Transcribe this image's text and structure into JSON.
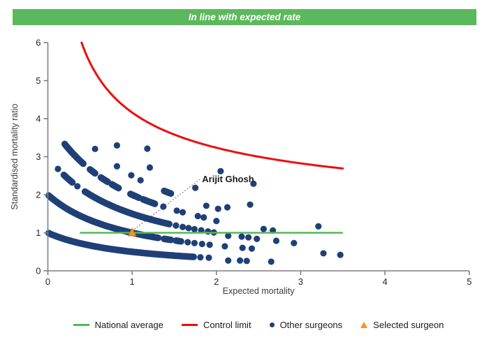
{
  "header": {
    "title": "In line with expected rate",
    "bg_color": "#5cb85c"
  },
  "colors": {
    "national_average_green": "#55b954",
    "control_limit_red": "#ee0c0c",
    "surgeon_dot_navy": "#1f4077",
    "selected_orange_fill": "#f7941e",
    "selected_orange_stroke": "#d97b10",
    "axis_gray": "#7f7f7f",
    "tick_text": "#262626",
    "axis_title_text": "#3d3d3d",
    "annotation_text": "#1a1a1a"
  },
  "chart_data": {
    "type": "scatter",
    "title": "",
    "xlabel": "Expected mortality",
    "ylabel": "Standardised mortality ratio",
    "xlim": [
      0,
      5
    ],
    "ylim": [
      0,
      6
    ],
    "xticks": [
      0,
      1,
      2,
      3,
      4,
      5
    ],
    "yticks": [
      0,
      1,
      2,
      3,
      4,
      5,
      6
    ],
    "grid": false,
    "legend_position": "bottom",
    "national_average": {
      "y": 1.0,
      "x_from": 0.38,
      "x_to": 3.5
    },
    "control_limit": {
      "formula": "SMR = 1 + c/sqrt(E)",
      "c": 3.162,
      "x_from": 0.4,
      "x_to": 3.5
    },
    "surgeon_bands_note": "dense streaks of overlapping surgeon points along SMR = k/(1+E)",
    "surgeon_bands": [
      {
        "k": 1,
        "dense_segments": [
          [
            0.01,
            1.73
          ]
        ],
        "dash_segments": [],
        "dot_xs": [
          1.81,
          1.91
        ]
      },
      {
        "k": 2,
        "dense_segments": [
          [
            0.01,
            1.32
          ]
        ],
        "dash_segments": [
          [
            1.38,
            1.46
          ],
          [
            1.52,
            1.58
          ]
        ],
        "dot_xs": [
          1.66,
          1.74,
          1.83,
          1.92,
          2.1,
          2.31,
          2.42
        ]
      },
      {
        "k": 3,
        "dense_segments": [
          [
            0.44,
            1.45
          ]
        ],
        "dash_segments": [
          [
            0.19,
            0.29
          ]
        ],
        "dot_xs": [
          0.12,
          0.35,
          1.52,
          1.6,
          1.67,
          1.74,
          1.82,
          1.9,
          1.97
        ]
      },
      {
        "k": 4,
        "dense_segments": [],
        "dash_segments": [
          [
            0.2,
            0.42
          ],
          [
            0.5,
            0.57
          ],
          [
            0.63,
            0.71
          ],
          [
            0.76,
            0.85
          ],
          [
            0.98,
            1.08
          ],
          [
            1.13,
            1.28
          ]
        ],
        "dot_xs": [
          1.37,
          1.53,
          1.6,
          1.78,
          1.85
        ]
      },
      {
        "k": 5,
        "dense_segments": [],
        "dash_segments": [
          [
            1.38,
            1.46
          ]
        ],
        "dot_xs": [
          0.56,
          0.82,
          0.99,
          1.1
        ]
      },
      {
        "k": 6,
        "dense_segments": [],
        "dash_segments": [],
        "dot_xs": [
          0.82,
          1.21,
          1.75
        ]
      },
      {
        "k": 7,
        "dense_segments": [],
        "dash_segments": [],
        "dot_xs": [
          1.18
        ]
      }
    ],
    "scatter_points": [
      [
        2.05,
        2.62
      ],
      [
        2.44,
        2.29
      ],
      [
        1.88,
        1.71
      ],
      [
        2.02,
        1.63
      ],
      [
        2.13,
        1.67
      ],
      [
        2.4,
        1.74
      ],
      [
        2.0,
        1.31
      ],
      [
        2.56,
        1.1
      ],
      [
        2.67,
        1.06
      ],
      [
        3.21,
        1.17
      ],
      [
        2.14,
        0.92
      ],
      [
        2.3,
        0.9
      ],
      [
        2.38,
        0.88
      ],
      [
        2.48,
        0.84
      ],
      [
        2.71,
        0.79
      ],
      [
        2.92,
        0.73
      ],
      [
        3.27,
        0.46
      ],
      [
        3.47,
        0.42
      ],
      [
        2.14,
        0.27
      ],
      [
        2.28,
        0.27
      ],
      [
        2.36,
        0.26
      ],
      [
        2.65,
        0.24
      ]
    ],
    "selected_surgeon": {
      "name": "Arijit Ghosh",
      "x": 1.0,
      "y": 1.0
    },
    "annotation": {
      "text": "Arijit Ghosh",
      "label_x": 1.83,
      "label_y": 2.33,
      "line_from": [
        1.0,
        1.05
      ],
      "line_to": [
        1.8,
        2.4
      ]
    }
  },
  "legend": {
    "items": [
      {
        "swatch": "line-green",
        "label": "National average"
      },
      {
        "swatch": "line-red",
        "label": "Control limit"
      },
      {
        "swatch": "dot-navy",
        "label": "Other surgeons"
      },
      {
        "swatch": "triangle-orange",
        "label": "Selected surgeon"
      }
    ]
  }
}
